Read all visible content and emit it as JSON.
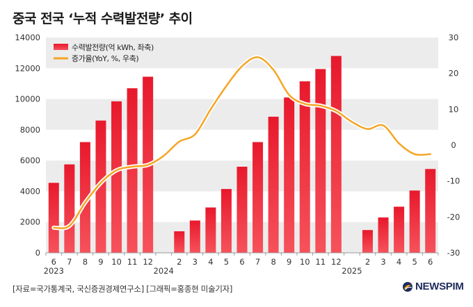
{
  "title": "중국 전국 ‘누적 수력발전량’ 추이",
  "footer": {
    "source": "[자료=국가통계국, 국신증권경제연구소] [그래픽=홍종현 미술기자]",
    "brand": "NEWSPIM"
  },
  "colors": {
    "bar": "#e8192c",
    "bar_light": "#f6525c",
    "line": "#f5a524",
    "band": "#ececec"
  },
  "chart_data": {
    "type": "bar",
    "categories": [
      "6",
      "7",
      "8",
      "9",
      "10",
      "11",
      "12",
      "",
      "2",
      "3",
      "4",
      "5",
      "6",
      "7",
      "8",
      "9",
      "10",
      "11",
      "12",
      "",
      "2",
      "3",
      "4",
      "5",
      "6"
    ],
    "year_labels": [
      {
        "label": "2023",
        "index": 0
      },
      {
        "label": "2024",
        "index": 7
      },
      {
        "label": "2025",
        "index": 19
      }
    ],
    "series": [
      {
        "name": "수력발전량(억 kWh, 좌축)",
        "type": "bar",
        "axis": "left",
        "values": [
          4550,
          5750,
          7200,
          8600,
          9850,
          10700,
          11450,
          null,
          1400,
          2100,
          2950,
          4150,
          5600,
          7200,
          8850,
          10100,
          11150,
          11950,
          12800,
          null,
          1480,
          2300,
          3000,
          4050,
          5450
        ]
      },
      {
        "name": "증가율(YoY, %, 우축)",
        "type": "line",
        "axis": "right",
        "values": [
          -23,
          -22.5,
          -16,
          -10.5,
          -7,
          -6,
          -5.5,
          -3,
          1,
          3,
          10,
          16.5,
          22,
          24.5,
          21,
          14,
          11.5,
          11,
          9.5,
          6.5,
          4.5,
          5.5,
          0.5,
          -2.5,
          -2.5
        ]
      }
    ],
    "y_left": {
      "min": 0,
      "max": 14000,
      "ticks": [
        0,
        2000,
        4000,
        6000,
        8000,
        10000,
        12000,
        14000
      ]
    },
    "y_right": {
      "min": -30,
      "max": 30,
      "ticks": [
        -30,
        -20,
        -10,
        0,
        10,
        20,
        30
      ]
    },
    "grid": "alternating horizontal bands",
    "legend_position": "top-left"
  }
}
